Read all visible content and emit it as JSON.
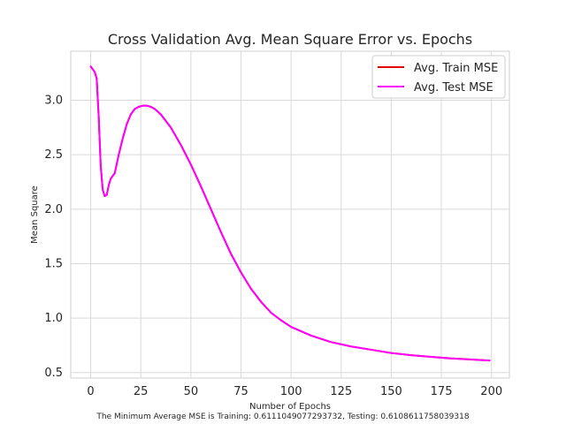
{
  "chart_data": {
    "type": "line",
    "title": "Cross Validation Avg. Mean Square Error vs. Epochs",
    "xlabel": "Number of Epochs",
    "ylabel": "Mean Square",
    "footnote": "The Minimum Average MSE is Training: 0.6111049077293732, Testing: 0.6108611758039318",
    "xlim": [
      -9.95,
      208.95
    ],
    "ylim": [
      0.45,
      3.45
    ],
    "x_ticks": [
      0,
      25,
      50,
      75,
      100,
      125,
      150,
      175,
      200
    ],
    "y_ticks": [
      0.5,
      1.0,
      1.5,
      2.0,
      2.5,
      3.0
    ],
    "x_tick_labels": [
      "0",
      "25",
      "50",
      "75",
      "100",
      "125",
      "150",
      "175",
      "200"
    ],
    "y_tick_labels": [
      "0.5",
      "1.0",
      "1.5",
      "2.0",
      "2.5",
      "3.0"
    ],
    "grid": true,
    "legend_position": "top-right",
    "series": [
      {
        "name": "Avg. Train MSE",
        "color": "#e00000",
        "x": [
          0,
          2,
          3,
          4,
          5,
          6,
          7,
          8,
          9,
          10,
          12,
          14,
          16,
          18,
          20,
          22,
          24,
          26,
          28,
          30,
          32,
          35,
          40,
          45,
          50,
          55,
          60,
          65,
          70,
          75,
          80,
          85,
          90,
          95,
          100,
          110,
          120,
          130,
          140,
          150,
          160,
          170,
          180,
          190,
          199
        ],
        "values": [
          3.31,
          3.26,
          3.2,
          2.85,
          2.4,
          2.18,
          2.12,
          2.13,
          2.22,
          2.28,
          2.33,
          2.5,
          2.65,
          2.78,
          2.87,
          2.92,
          2.94,
          2.95,
          2.95,
          2.94,
          2.92,
          2.87,
          2.75,
          2.59,
          2.41,
          2.21,
          2.0,
          1.79,
          1.59,
          1.42,
          1.27,
          1.15,
          1.05,
          0.98,
          0.92,
          0.84,
          0.78,
          0.74,
          0.71,
          0.68,
          0.66,
          0.645,
          0.63,
          0.62,
          0.611
        ]
      },
      {
        "name": "Avg. Test MSE",
        "color": "#ff00ff",
        "x": [
          0,
          2,
          3,
          4,
          5,
          6,
          7,
          8,
          9,
          10,
          12,
          14,
          16,
          18,
          20,
          22,
          24,
          26,
          28,
          30,
          32,
          35,
          40,
          45,
          50,
          55,
          60,
          65,
          70,
          75,
          80,
          85,
          90,
          95,
          100,
          110,
          120,
          130,
          140,
          150,
          160,
          170,
          180,
          190,
          199
        ],
        "values": [
          3.31,
          3.26,
          3.2,
          2.85,
          2.4,
          2.18,
          2.12,
          2.13,
          2.22,
          2.28,
          2.33,
          2.5,
          2.65,
          2.78,
          2.87,
          2.92,
          2.94,
          2.95,
          2.95,
          2.94,
          2.92,
          2.87,
          2.75,
          2.59,
          2.41,
          2.21,
          2.0,
          1.79,
          1.59,
          1.42,
          1.27,
          1.15,
          1.05,
          0.98,
          0.92,
          0.84,
          0.78,
          0.74,
          0.71,
          0.68,
          0.66,
          0.645,
          0.63,
          0.62,
          0.611
        ]
      }
    ]
  }
}
